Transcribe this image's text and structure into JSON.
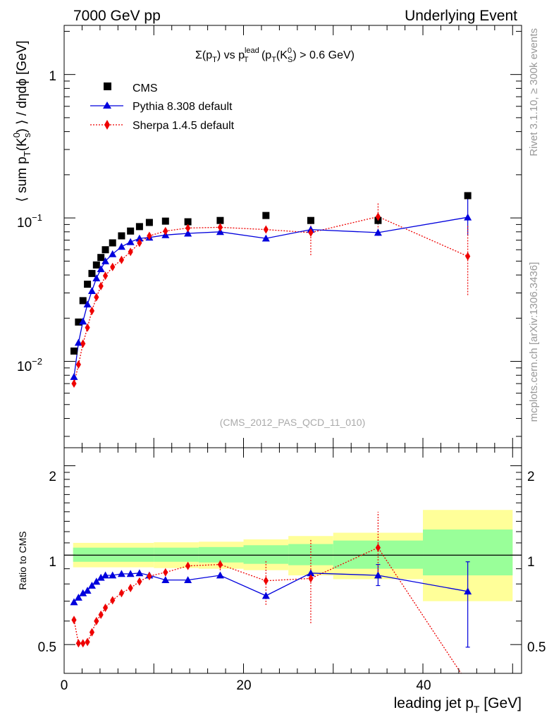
{
  "header": {
    "left": "7000 GeV pp",
    "right": "Underlying Event"
  },
  "side_labels": {
    "rivet": "Rivet 3.1.10, ≥ 300k events",
    "mcplots": "mcplots.cern.ch [arXiv:1306.3436]"
  },
  "main_panel": {
    "title": {
      "a": "Σ(p",
      "a_sub": "T",
      "b": ") vs p",
      "b_sup": "lead",
      "b_sub": "T",
      "c": " (p",
      "c_sub": "T",
      "d": "(K",
      "d_sup": "0",
      "d_sub": "S",
      "e": ") > 0.6 GeV)"
    },
    "ylabel": {
      "a": "⟨ sum p",
      "a_sub": "T",
      "b": "(K",
      "b_sup": "0",
      "b_sub": "s",
      "c": ") ⟩ / dηdϕ [GeV]"
    },
    "reference": "(CMS_2012_PAS_QCD_11_010)",
    "yticks": {
      "one": "1",
      "base": "10",
      "exp1": "−1",
      "exp2": "−2"
    }
  },
  "ratio_panel": {
    "ylabel": "Ratio to CMS",
    "yticks": [
      "2",
      "1",
      "0.5"
    ]
  },
  "x_axis": {
    "ticks": [
      "0",
      "20",
      "40"
    ],
    "label": "leading jet p",
    "label_sub": "T",
    "label_unit": " [GeV]"
  },
  "legend": [
    "CMS",
    "Pythia 8.308 default",
    "Sherpa 1.4.5 default"
  ],
  "colors": {
    "cms": "#000000",
    "pythia": "#0000dd",
    "sherpa": "#ee0000",
    "band_inner": "#99ff99",
    "band_outer": "#ffff99"
  },
  "chart_data": {
    "type": "line",
    "x_range": [
      0,
      51
    ],
    "main_y_range": [
      0.0025,
      2.2
    ],
    "main_y_scale": "log",
    "ratio_y_range": [
      0.4,
      2.3
    ],
    "ratio_y_scale": "log",
    "x": [
      1.1,
      1.6,
      2.1,
      2.6,
      3.1,
      3.6,
      4.1,
      4.6,
      5.4,
      6.4,
      7.4,
      8.4,
      9.5,
      11.3,
      13.8,
      17.4,
      22.5,
      27.5,
      35.0,
      45.0
    ],
    "series": [
      {
        "name": "CMS",
        "values": [
          0.0118,
          0.0188,
          0.0265,
          0.0345,
          0.041,
          0.047,
          0.053,
          0.06,
          0.067,
          0.075,
          0.081,
          0.087,
          0.093,
          0.095,
          0.094,
          0.096,
          0.104,
          0.096,
          0.096,
          0.143
        ]
      },
      {
        "name": "Pythia 8.308 default",
        "values": [
          0.0078,
          0.0135,
          0.019,
          0.025,
          0.031,
          0.038,
          0.044,
          0.05,
          0.056,
          0.063,
          0.068,
          0.072,
          0.073,
          0.076,
          0.078,
          0.08,
          0.072,
          0.083,
          0.079,
          0.101
        ]
      },
      {
        "name": "Sherpa 1.4.5 default",
        "values": [
          0.007,
          0.0095,
          0.0133,
          0.0172,
          0.0225,
          0.028,
          0.0335,
          0.0395,
          0.0455,
          0.051,
          0.058,
          0.067,
          0.075,
          0.081,
          0.085,
          0.086,
          0.083,
          0.079,
          0.102,
          0.054
        ]
      }
    ],
    "errors": {
      "pythia_main": {
        "index": 19,
        "low": 0.075,
        "high": 0.137
      },
      "sherpa_main": [
        {
          "index": 17,
          "low": 0.055,
          "high": 0.102
        },
        {
          "index": 18,
          "low": 0.075,
          "high": 0.129
        },
        {
          "index": 19,
          "low": 0.029,
          "high": 0.09
        }
      ],
      "cms_main": {
        "index": 18,
        "low": 0.09,
        "high": 0.103
      },
      "pythia_ratio": [
        {
          "index": 18,
          "low": 0.79,
          "high": 0.93
        },
        {
          "index": 19,
          "low": 0.49,
          "high": 0.95
        }
      ],
      "sherpa_ratio": [
        {
          "index": 15,
          "low": 0.89,
          "high": 0.97
        },
        {
          "index": 16,
          "low": 0.68,
          "high": 0.96
        },
        {
          "index": 17,
          "low": 0.59,
          "high": 1.13
        },
        {
          "index": 18,
          "low": 0.86,
          "high": 1.4
        }
      ]
    },
    "ratio_pythia": [
      0.695,
      0.72,
      0.745,
      0.76,
      0.79,
      0.815,
      0.84,
      0.855,
      0.855,
      0.865,
      0.865,
      0.87,
      0.855,
      0.825,
      0.825,
      0.855,
      0.73,
      0.87,
      0.855,
      0.755
    ],
    "ratio_sherpa": [
      0.605,
      0.505,
      0.505,
      0.51,
      0.55,
      0.6,
      0.63,
      0.665,
      0.705,
      0.745,
      0.775,
      0.815,
      0.85,
      0.875,
      0.92,
      0.93,
      0.82,
      0.835,
      1.06,
      0.37
    ],
    "band_bins": [
      {
        "from": 1,
        "to": 10,
        "inner": [
          0.95,
          1.06
        ],
        "outer": [
          0.91,
          1.1
        ]
      },
      {
        "from": 10,
        "to": 15,
        "inner": [
          0.95,
          1.06
        ],
        "outer": [
          0.905,
          1.105
        ]
      },
      {
        "from": 15,
        "to": 20,
        "inner": [
          0.945,
          1.065
        ],
        "outer": [
          0.9,
          1.11
        ]
      },
      {
        "from": 20,
        "to": 25,
        "inner": [
          0.935,
          1.08
        ],
        "outer": [
          0.89,
          1.13
        ]
      },
      {
        "from": 25,
        "to": 30,
        "inner": [
          0.925,
          1.09
        ],
        "outer": [
          0.855,
          1.16
        ]
      },
      {
        "from": 30,
        "to": 40,
        "inner": [
          0.9,
          1.12
        ],
        "outer": [
          0.83,
          1.19
        ]
      },
      {
        "from": 40,
        "to": 50,
        "inner": [
          0.855,
          1.22
        ],
        "outer": [
          0.7,
          1.42
        ]
      }
    ]
  }
}
